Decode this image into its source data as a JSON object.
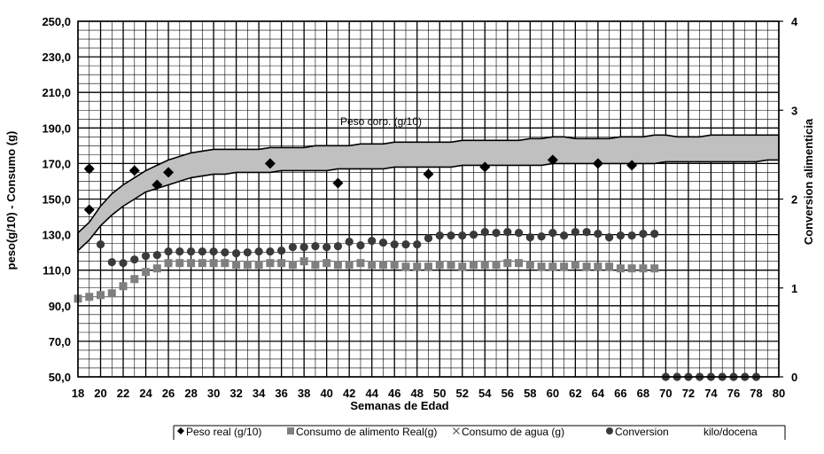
{
  "chart_data": {
    "type": "scatter",
    "xlabel": "Semanas de Edad",
    "ylabel": "peso(g/10) - Consumo (g)",
    "y2label": "Conversion alimenticia",
    "xlim": [
      18,
      80
    ],
    "ylim": [
      50,
      250
    ],
    "y2lim": [
      0,
      4
    ],
    "x_ticks": [
      18,
      20,
      22,
      24,
      26,
      28,
      30,
      32,
      34,
      36,
      38,
      40,
      42,
      44,
      46,
      48,
      50,
      52,
      54,
      56,
      58,
      60,
      62,
      64,
      66,
      68,
      70,
      72,
      74,
      76,
      78,
      80
    ],
    "y_ticks": [
      "50,0",
      "70,0",
      "90,0",
      "110,0",
      "130,0",
      "150,0",
      "170,0",
      "190,0",
      "210,0",
      "230,0",
      "250,0"
    ],
    "y_tick_values": [
      50,
      70,
      90,
      110,
      130,
      150,
      170,
      190,
      210,
      230,
      250
    ],
    "y2_ticks": [
      "0",
      "1",
      "2",
      "3",
      "4"
    ],
    "y2_tick_values": [
      0,
      1,
      2,
      3,
      4
    ],
    "grid": true,
    "band": {
      "label": "Peso corp. (g/10)",
      "fill": "#c0c0c0",
      "x": [
        18,
        19,
        20,
        21,
        22,
        23,
        24,
        25,
        26,
        27,
        28,
        29,
        30,
        31,
        32,
        33,
        34,
        35,
        36,
        37,
        38,
        39,
        40,
        41,
        42,
        43,
        44,
        45,
        46,
        47,
        48,
        49,
        50,
        51,
        52,
        53,
        54,
        55,
        56,
        57,
        58,
        59,
        60,
        61,
        62,
        63,
        64,
        65,
        66,
        67,
        68,
        69,
        70,
        71,
        72,
        73,
        74,
        75,
        76,
        77,
        78,
        79,
        80
      ],
      "upper": [
        131,
        137,
        146,
        153,
        158,
        162,
        166,
        169,
        172,
        174,
        176,
        177,
        178,
        178,
        178,
        178,
        178,
        179,
        179,
        179,
        179,
        180,
        180,
        180,
        180,
        181,
        181,
        181,
        182,
        182,
        182,
        182,
        182,
        182,
        183,
        183,
        183,
        183,
        183,
        183,
        184,
        184,
        185,
        185,
        184,
        184,
        184,
        184,
        185,
        185,
        185,
        186,
        186,
        185,
        185,
        185,
        186,
        186,
        186,
        186,
        186,
        186,
        186
      ],
      "lower": [
        121,
        127,
        135,
        141,
        146,
        150,
        154,
        156,
        158,
        160,
        162,
        163,
        164,
        164,
        165,
        165,
        165,
        165,
        166,
        166,
        166,
        166,
        166,
        167,
        167,
        167,
        167,
        167,
        168,
        168,
        168,
        168,
        168,
        168,
        169,
        169,
        169,
        169,
        169,
        169,
        169,
        169,
        170,
        170,
        170,
        170,
        170,
        170,
        170,
        170,
        170,
        170,
        171,
        171,
        171,
        171,
        171,
        171,
        171,
        171,
        171,
        172,
        172
      ]
    },
    "series": [
      {
        "name": "Peso real (g/10)",
        "marker": "diamond",
        "axis": "left",
        "x": [
          19,
          19,
          23,
          25,
          26,
          35,
          41,
          49,
          54,
          60,
          64,
          67
        ],
        "y": [
          144,
          167,
          166,
          158,
          165,
          170,
          159,
          164,
          168,
          172,
          170,
          169
        ]
      },
      {
        "name": "Consumo de alimento Real(g)",
        "marker": "square",
        "axis": "left",
        "x": [
          18,
          19,
          20,
          21,
          22,
          23,
          24,
          25,
          26,
          27,
          28,
          29,
          30,
          31,
          32,
          33,
          34,
          35,
          36,
          37,
          38,
          39,
          40,
          41,
          42,
          43,
          44,
          45,
          46,
          47,
          48,
          49,
          50,
          51,
          52,
          53,
          54,
          55,
          56,
          57,
          58,
          59,
          60,
          61,
          62,
          63,
          64,
          65,
          66,
          67,
          68,
          69
        ],
        "y": [
          94,
          95,
          96,
          97,
          101,
          105,
          109,
          111,
          114,
          114,
          114,
          114,
          114,
          114,
          113,
          113,
          113,
          114,
          114,
          113,
          115,
          113,
          114,
          113,
          113,
          114,
          113,
          113,
          113,
          112,
          112,
          112,
          113,
          113,
          112,
          113,
          113,
          113,
          114,
          114,
          113,
          112,
          112,
          112,
          113,
          112,
          112,
          112,
          111,
          111,
          111,
          111
        ]
      },
      {
        "name": "Consumo de agua (g)",
        "marker": "x",
        "axis": "left",
        "x": [],
        "y": []
      },
      {
        "name": "Conversion",
        "marker": "circle",
        "axis": "right",
        "x": [
          19,
          20,
          21,
          22,
          23,
          24,
          25,
          26,
          27,
          28,
          29,
          30,
          31,
          32,
          33,
          34,
          35,
          36,
          37,
          38,
          39,
          40,
          41,
          42,
          43,
          44,
          45,
          46,
          47,
          48,
          49,
          50,
          51,
          52,
          53,
          54,
          55,
          56,
          57,
          58,
          59,
          60,
          61,
          62,
          63,
          64,
          65,
          66,
          67,
          68,
          69,
          70,
          71,
          72,
          73,
          74,
          75,
          76,
          77,
          78
        ],
        "y": [
          2.34,
          1.49,
          1.29,
          1.28,
          1.32,
          1.36,
          1.37,
          1.41,
          1.41,
          1.41,
          1.41,
          1.41,
          1.4,
          1.39,
          1.4,
          1.41,
          1.41,
          1.42,
          1.46,
          1.46,
          1.47,
          1.46,
          1.47,
          1.52,
          1.48,
          1.53,
          1.51,
          1.49,
          1.49,
          1.49,
          1.56,
          1.59,
          1.59,
          1.59,
          1.6,
          1.63,
          1.62,
          1.63,
          1.62,
          1.57,
          1.58,
          1.62,
          1.59,
          1.63,
          1.63,
          1.61,
          1.57,
          1.59,
          1.59,
          1.61,
          1.61,
          0,
          0,
          0,
          0,
          0,
          0,
          0,
          0,
          0
        ]
      }
    ],
    "legend": {
      "placement": "bottom",
      "entries": [
        "Peso real (g/10)",
        "Consumo de alimento Real(g)",
        "Consumo de agua (g)",
        "Conversion",
        "kilo/docena"
      ]
    }
  }
}
